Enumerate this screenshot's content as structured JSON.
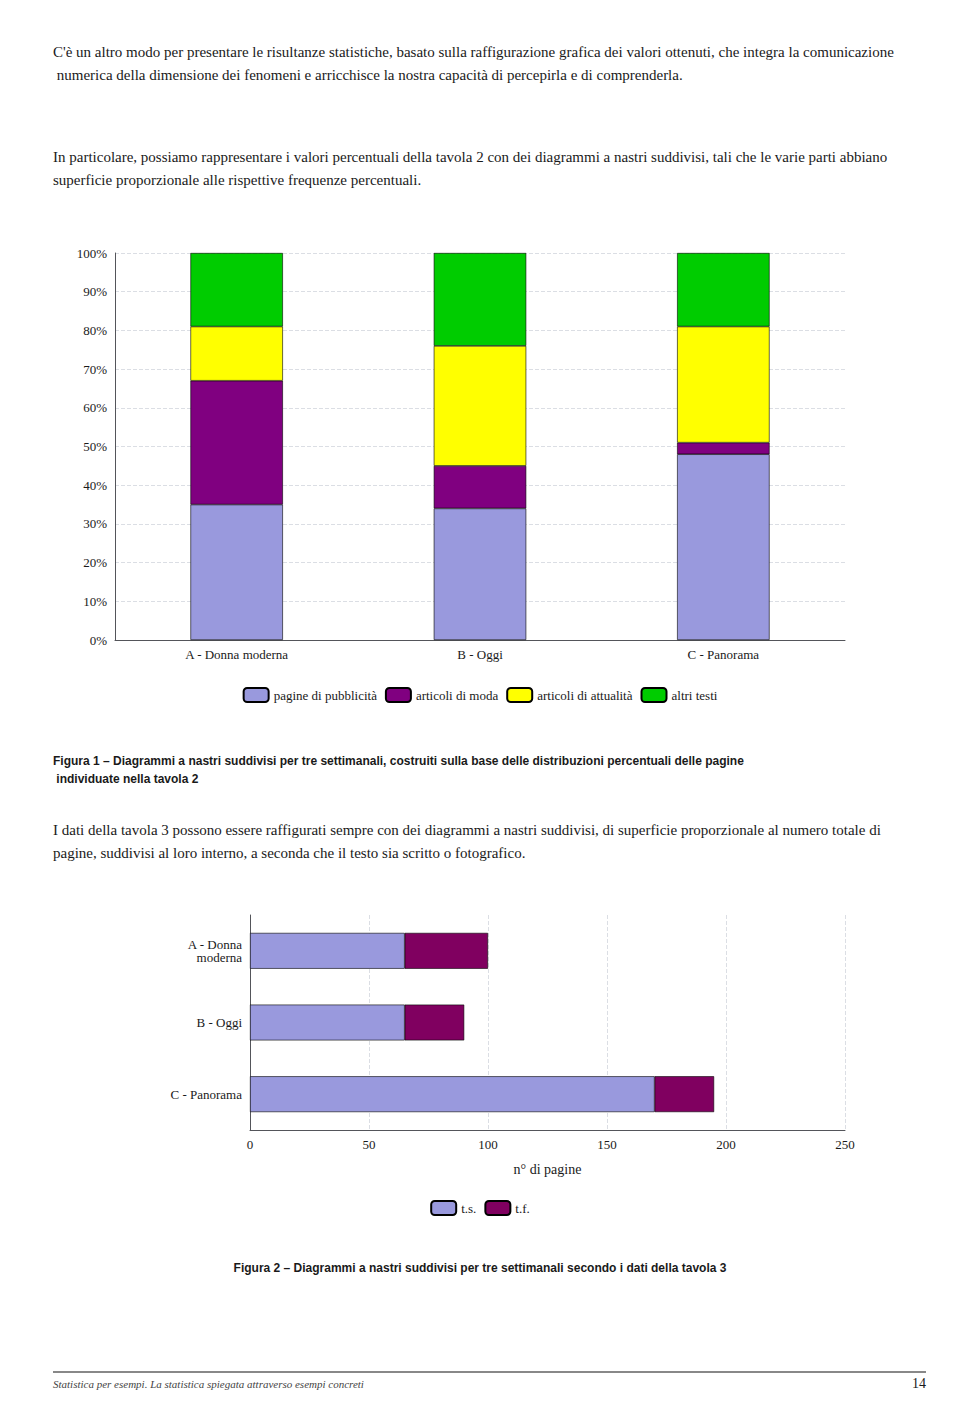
{
  "chart_data": [
    {
      "type": "bar",
      "title": "Figura 1 – Diagrammi a nastri suddivisi per tre settimanali, costruiti sulla base delle distribuzioni percentuali delle pagine individuate nella tavola 2",
      "annotations": [
        "C'è un altro modo per presentare le risultanze statistiche, basato sulla raffigurazione grafica dei valori ottenuti, che integra la comunicazione numerica della dimensione dei fenomeni e arricchisce la nostra capacità di percepirla e di comprenderla.",
        "In particolare, possiamo rappresentare i valori percentuali della tavola 2 con dei diagrammi a nastri suddivisi, tali che le varie parti abbiano superficie proporzionale alle rispettive frequenze percentuali."
      ],
      "categories": [
        "A - Donna moderna",
        "B - Oggi",
        "C - Panorama"
      ],
      "series": [
        {
          "name": "pagine di pubblicità",
          "color": "#9999dd",
          "values": [
            35,
            34,
            48
          ]
        },
        {
          "name": "articoli di moda",
          "color": "#800080",
          "values": [
            32,
            11,
            3
          ]
        },
        {
          "name": "articoli di attualità",
          "color": "#ffff00",
          "values": [
            14,
            31,
            30
          ]
        },
        {
          "name": "altri testi",
          "color": "#00cc00",
          "values": [
            19,
            24,
            19
          ]
        }
      ],
      "stacked": true,
      "ylim": [
        0,
        100
      ],
      "yticks": [
        {
          "value": 0,
          "label": "0%"
        },
        {
          "value": 10,
          "label": "10%"
        },
        {
          "value": 20,
          "label": "20%"
        },
        {
          "value": 30,
          "label": "30%"
        },
        {
          "value": 40,
          "label": "40%"
        },
        {
          "value": 50,
          "label": "50%"
        },
        {
          "value": 60,
          "label": "60%"
        },
        {
          "value": 70,
          "label": "70%"
        },
        {
          "value": 80,
          "label": "80%"
        },
        {
          "value": 90,
          "label": "90%"
        },
        {
          "value": 100,
          "label": "100%"
        }
      ],
      "grid": true,
      "legend": "bottom"
    },
    {
      "type": "bar",
      "title": "Figura 2 – Diagrammi a nastri suddivisi per tre settimanali secondo i dati della tavola 3",
      "annotations": [
        "I dati della tavola 3 possono essere raffigurati sempre con dei diagrammi a nastri suddivisi, di superficie proporzionale al numero totale di pagine, suddivisi al loro interno, a seconda che il testo sia scritto o fotografico.",
        "Statistica per esempi. La statistica spiegata attraverso esempi concreti",
        "14"
      ],
      "orientation": "horizontal",
      "categories": [
        "C - Panorama",
        "B - Oggi",
        "A - Donna\nmoderna"
      ],
      "series": [
        {
          "name": "t.s.",
          "color": "#9999dd",
          "values": [
            170,
            65,
            65
          ]
        },
        {
          "name": "t.f.",
          "color": "#800060",
          "values": [
            25,
            25,
            35
          ]
        }
      ],
      "stacked": true,
      "xlabel": "n° di pagine",
      "xlim": [
        0,
        250
      ],
      "xticks": [
        0,
        50,
        100,
        150,
        200,
        250
      ],
      "grid": true,
      "legend": "bottom"
    }
  ]
}
